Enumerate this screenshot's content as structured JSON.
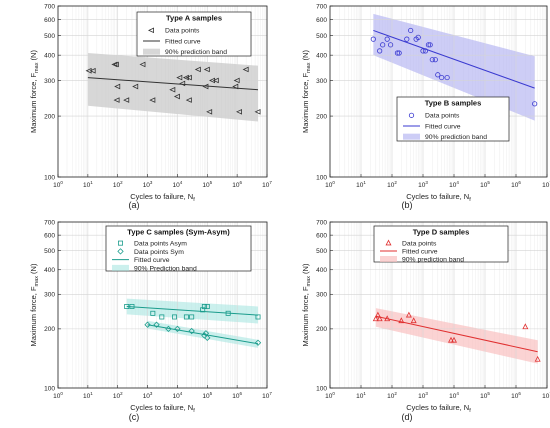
{
  "chart_data": [
    {
      "type": "scatter",
      "panel": "a",
      "caption": "(a)",
      "title": "Type A samples",
      "xlabel": "Cycles to failure, N",
      "xlabel_sub": "f",
      "ylabel": "Maximum force, F",
      "ylabel_sub": "max",
      "ylabel_unit": " (N)",
      "xscale": "log",
      "yscale": "log",
      "xlim": [
        1,
        10000000
      ],
      "ylim": [
        100,
        700
      ],
      "x_ticks": [
        1,
        10,
        100,
        1000,
        10000,
        100000,
        1000000,
        10000000
      ],
      "x_tick_labels": [
        {
          "base": "10",
          "exp": "0"
        },
        {
          "base": "10",
          "exp": "1"
        },
        {
          "base": "10",
          "exp": "2"
        },
        {
          "base": "10",
          "exp": "3"
        },
        {
          "base": "10",
          "exp": "4"
        },
        {
          "base": "10",
          "exp": "5"
        },
        {
          "base": "10",
          "exp": "6"
        },
        {
          "base": "10",
          "exp": "7"
        }
      ],
      "y_ticks": [
        100,
        200,
        300,
        400,
        500,
        600,
        700
      ],
      "y_tick_labels": [
        "100",
        "200",
        "300",
        "400",
        "500",
        "600",
        "700"
      ],
      "grid": true,
      "legend_position": "top-right",
      "color": "#333333",
      "band_color": "#c9c9c9",
      "band_opacity": 0.75,
      "legend": [
        {
          "label": "Data points",
          "kind": "marker",
          "marker": "triangle-left"
        },
        {
          "label": "Fitted curve",
          "kind": "line"
        },
        {
          "label": "90% prediction band",
          "kind": "band"
        }
      ],
      "series": [
        {
          "role": "points",
          "marker": "triangle-left",
          "x": [
            11,
            15,
            80,
            90,
            95,
            100,
            200,
            400,
            700,
            1500,
            7000,
            10000,
            12000,
            15000,
            20000,
            25000,
            25000,
            50000,
            90000,
            100000,
            120000,
            150000,
            200000,
            900000,
            1000000,
            1200000,
            2000000,
            5000000
          ],
          "y": [
            335,
            335,
            360,
            360,
            240,
            280,
            240,
            280,
            360,
            240,
            270,
            250,
            310,
            290,
            310,
            310,
            240,
            340,
            280,
            340,
            210,
            300,
            300,
            280,
            300,
            210,
            340,
            210
          ]
        },
        {
          "role": "fit",
          "x": [
            10,
            5000000
          ],
          "y": [
            310,
            270
          ]
        },
        {
          "role": "band",
          "x": [
            10,
            5000000
          ],
          "upper": [
            410,
            355
          ],
          "lower": [
            225,
            188
          ]
        }
      ]
    },
    {
      "type": "scatter",
      "panel": "b",
      "caption": "(b)",
      "title": "Type B samples",
      "xlabel": "Cycles to failure, N",
      "xlabel_sub": "f",
      "ylabel": "Maximum force, F",
      "ylabel_sub": "max",
      "ylabel_unit": " (N)",
      "xscale": "log",
      "yscale": "log",
      "xlim": [
        1,
        10000000
      ],
      "ylim": [
        100,
        700
      ],
      "x_ticks": [
        1,
        10,
        100,
        1000,
        10000,
        100000,
        1000000,
        10000000
      ],
      "x_tick_labels": [
        {
          "base": "10",
          "exp": "0"
        },
        {
          "base": "10",
          "exp": "1"
        },
        {
          "base": "10",
          "exp": "2"
        },
        {
          "base": "10",
          "exp": "3"
        },
        {
          "base": "10",
          "exp": "4"
        },
        {
          "base": "10",
          "exp": "5"
        },
        {
          "base": "10",
          "exp": "6"
        },
        {
          "base": "10",
          "exp": "7"
        }
      ],
      "y_ticks": [
        100,
        200,
        300,
        400,
        500,
        600,
        700
      ],
      "y_tick_labels": [
        "100",
        "200",
        "300",
        "400",
        "500",
        "600",
        "700"
      ],
      "grid": true,
      "legend_position": "bottom-right",
      "color": "#3a3ad0",
      "band_color": "#b8b8f2",
      "band_opacity": 0.7,
      "legend": [
        {
          "label": "Data points",
          "kind": "marker",
          "marker": "circle"
        },
        {
          "label": "Fitted curve",
          "kind": "line"
        },
        {
          "label": "90% prediction band",
          "kind": "band"
        }
      ],
      "series": [
        {
          "role": "points",
          "marker": "circle",
          "x": [
            25,
            40,
            50,
            70,
            90,
            150,
            170,
            300,
            400,
            600,
            700,
            1000,
            1200,
            1500,
            1700,
            2000,
            2500,
            3000,
            4000,
            6000,
            4000000
          ],
          "y": [
            480,
            420,
            450,
            480,
            450,
            410,
            410,
            480,
            530,
            480,
            490,
            420,
            420,
            450,
            450,
            380,
            380,
            320,
            310,
            310,
            230
          ]
        },
        {
          "role": "fit",
          "x": [
            25,
            4000000
          ],
          "y": [
            530,
            275
          ]
        },
        {
          "role": "band",
          "x": [
            25,
            4000000
          ],
          "upper": [
            640,
            395
          ],
          "lower": [
            400,
            190
          ]
        }
      ]
    },
    {
      "type": "scatter",
      "panel": "c",
      "caption": "(c)",
      "title": "Type C samples (Sym-Asym)",
      "xlabel": "Cycles to failure, N",
      "xlabel_sub": "f",
      "ylabel": "Maximum force, F",
      "ylabel_sub": "max",
      "ylabel_unit": " (N)",
      "xscale": "log",
      "yscale": "log",
      "xlim": [
        1,
        10000000
      ],
      "ylim": [
        100,
        700
      ],
      "x_ticks": [
        1,
        10,
        100,
        1000,
        10000,
        100000,
        1000000,
        10000000
      ],
      "x_tick_labels": [
        {
          "base": "10",
          "exp": "0"
        },
        {
          "base": "10",
          "exp": "1"
        },
        {
          "base": "10",
          "exp": "2"
        },
        {
          "base": "10",
          "exp": "3"
        },
        {
          "base": "10",
          "exp": "4"
        },
        {
          "base": "10",
          "exp": "5"
        },
        {
          "base": "10",
          "exp": "6"
        },
        {
          "base": "10",
          "exp": "7"
        }
      ],
      "y_ticks": [
        100,
        200,
        300,
        400,
        500,
        600,
        700
      ],
      "y_tick_labels": [
        "100",
        "200",
        "300",
        "400",
        "500",
        "600",
        "700"
      ],
      "grid": true,
      "legend_position": "top-right",
      "color": "#1a9c8c",
      "band_color": "#a9e6e1",
      "band_opacity": 0.6,
      "legend": [
        {
          "label": "Data points Asym",
          "kind": "marker",
          "marker": "square"
        },
        {
          "label": "Data points Sym",
          "kind": "marker",
          "marker": "diamond"
        },
        {
          "label": "Fitted curve",
          "kind": "line"
        },
        {
          "label": "90% Prediction band",
          "kind": "band"
        }
      ],
      "series": [
        {
          "role": "points",
          "name": "Data points Asym",
          "marker": "square",
          "x": [
            200,
            300,
            1500,
            3000,
            8000,
            20000,
            30000,
            70000,
            80000,
            100000,
            500000,
            5000000
          ],
          "y": [
            260,
            260,
            240,
            230,
            230,
            230,
            230,
            250,
            260,
            260,
            240,
            230
          ]
        },
        {
          "role": "points",
          "name": "Data points Sym",
          "marker": "diamond",
          "x": [
            1000,
            2000,
            5000,
            10000,
            30000,
            80000,
            90000,
            100000,
            5000000
          ],
          "y": [
            210,
            210,
            200,
            200,
            195,
            185,
            190,
            180,
            170
          ]
        },
        {
          "role": "fit",
          "x": [
            200,
            5000000
          ],
          "y": [
            260,
            235
          ]
        },
        {
          "role": "band",
          "x": [
            200,
            5000000
          ],
          "upper": [
            285,
            260
          ],
          "lower": [
            237,
            213
          ]
        },
        {
          "role": "fit",
          "x": [
            1000,
            5000000
          ],
          "y": [
            210,
            168
          ]
        },
        {
          "role": "band",
          "x": [
            1000,
            5000000
          ],
          "upper": [
            220,
            176
          ],
          "lower": [
            201,
            160
          ]
        }
      ]
    },
    {
      "type": "scatter",
      "panel": "d",
      "caption": "(d)",
      "title": "Type D samples",
      "xlabel": "Cycles to failure, N",
      "xlabel_sub": "f",
      "ylabel": "Maximum force, F",
      "ylabel_sub": "max",
      "ylabel_unit": " (N)",
      "xscale": "log",
      "yscale": "log",
      "xlim": [
        1,
        10000000
      ],
      "ylim": [
        100,
        700
      ],
      "x_ticks": [
        1,
        10,
        100,
        1000,
        10000,
        100000,
        1000000,
        10000000
      ],
      "x_tick_labels": [
        {
          "base": "10",
          "exp": "0"
        },
        {
          "base": "10",
          "exp": "1"
        },
        {
          "base": "10",
          "exp": "2"
        },
        {
          "base": "10",
          "exp": "3"
        },
        {
          "base": "10",
          "exp": "4"
        },
        {
          "base": "10",
          "exp": "5"
        },
        {
          "base": "10",
          "exp": "6"
        },
        {
          "base": "10",
          "exp": "7"
        }
      ],
      "y_ticks": [
        100,
        200,
        300,
        400,
        500,
        600,
        700
      ],
      "y_tick_labels": [
        "100",
        "200",
        "300",
        "400",
        "500",
        "600",
        "700"
      ],
      "grid": true,
      "legend_position": "top-left",
      "color": "#e03030",
      "band_color": "#f9c0c0",
      "band_opacity": 0.7,
      "legend": [
        {
          "label": "Data points",
          "kind": "marker",
          "marker": "triangle-up"
        },
        {
          "label": "Fitted curve",
          "kind": "line"
        },
        {
          "label": "90% prediction band",
          "kind": "band"
        }
      ],
      "series": [
        {
          "role": "points",
          "marker": "triangle-up",
          "x": [
            30,
            35,
            40,
            70,
            200,
            350,
            500,
            8000,
            10000,
            2000000,
            5000000
          ],
          "y": [
            225,
            235,
            225,
            225,
            220,
            235,
            220,
            175,
            175,
            205,
            140
          ]
        },
        {
          "role": "fit",
          "x": [
            30,
            5000000
          ],
          "y": [
            232,
            153
          ]
        },
        {
          "role": "band",
          "x": [
            30,
            5000000
          ],
          "upper": [
            255,
            175
          ],
          "lower": [
            205,
            133
          ]
        }
      ]
    }
  ]
}
